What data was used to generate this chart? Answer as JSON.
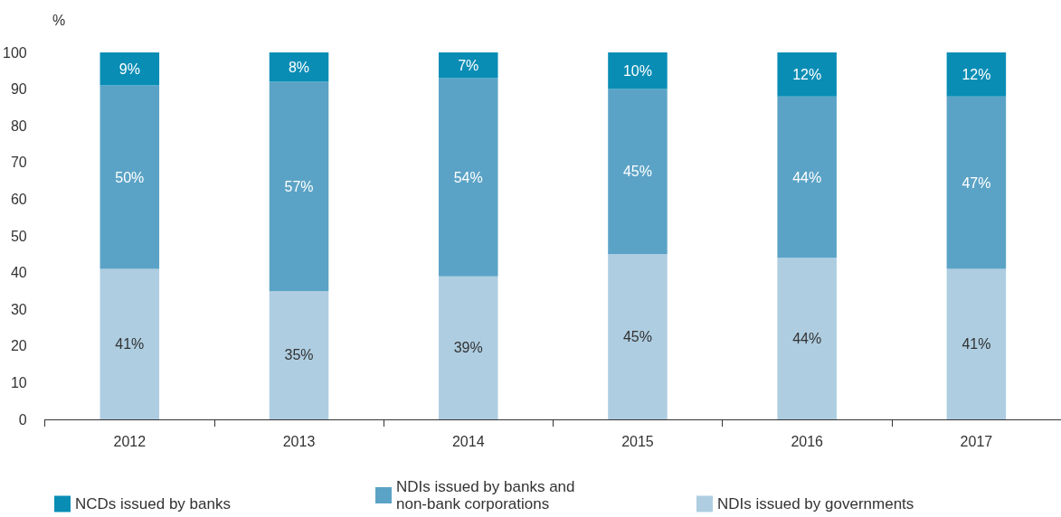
{
  "chart_data": {
    "type": "bar",
    "stacked": true,
    "ylabel": "%",
    "categories": [
      "2012",
      "2013",
      "2014",
      "2015",
      "2016",
      "2017"
    ],
    "series": [
      {
        "name": "NDIs issued by governments",
        "color": "#aecde1",
        "values": [
          41,
          35,
          39,
          45,
          44,
          41
        ],
        "value_labels": [
          "41%",
          "35%",
          "39%",
          "45%",
          "44%",
          "41%"
        ]
      },
      {
        "name": "NDIs issued by banks and non-bank corporations",
        "color": "#5ba3c6",
        "values": [
          50,
          57,
          54,
          45,
          44,
          47
        ],
        "value_labels": [
          "50%",
          "57%",
          "54%",
          "45%",
          "44%",
          "47%"
        ]
      },
      {
        "name": "NCDs issued by banks",
        "color": "#0a8db5",
        "values": [
          9,
          8,
          7,
          10,
          12,
          12
        ],
        "value_labels": [
          "9%",
          "8%",
          "7%",
          "10%",
          "12%",
          "12%"
        ]
      }
    ],
    "ylim": [
      0,
      100
    ],
    "yticks": [
      0,
      10,
      20,
      30,
      40,
      50,
      60,
      70,
      80,
      90,
      100
    ],
    "legend": "bottom",
    "grid": false
  }
}
